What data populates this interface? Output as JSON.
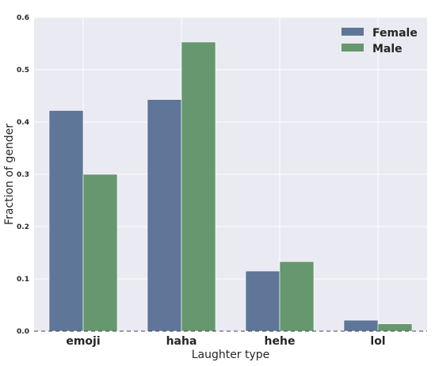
{
  "chart_data": {
    "type": "bar",
    "xlabel": "Laughter type",
    "ylabel": "Fraction of gender",
    "categories": [
      "emoji",
      "haha",
      "hehe",
      "lol"
    ],
    "series": [
      {
        "name": "Female",
        "values": [
          0.422,
          0.443,
          0.115,
          0.021
        ],
        "color": "#5F7699"
      },
      {
        "name": "Male",
        "values": [
          0.3,
          0.553,
          0.133,
          0.014
        ],
        "color": "#66976E"
      }
    ],
    "ylim": [
      0,
      0.6
    ],
    "yticks": [
      "0.0",
      "0.1",
      "0.2",
      "0.3",
      "0.4",
      "0.5",
      "0.6"
    ],
    "grid": true,
    "zero_line": "dashed",
    "legend": "top-right",
    "background": "#EAEAF2"
  }
}
